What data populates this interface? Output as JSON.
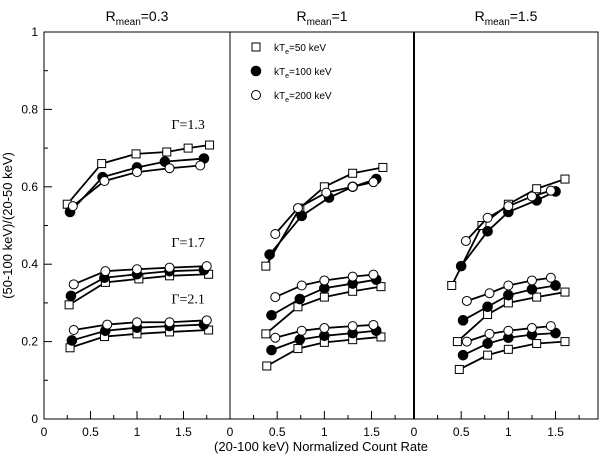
{
  "chart_data": {
    "type": "line",
    "xlabel": "(20-100 keV) Normalized Count Rate",
    "ylabel": "(50-100 keV)/(20-50 keV)",
    "ylim": [
      0,
      1
    ],
    "y_ticks": [
      "0",
      "0.2",
      "0.4",
      "0.6",
      "0.8",
      "1"
    ],
    "legend": {
      "placement": "top of middle panel",
      "entries": [
        {
          "key": "kT50",
          "label": "kT",
          "sub": "e",
          "rest": "=50 keV",
          "marker": "open-square"
        },
        {
          "key": "kT100",
          "label": "kT",
          "sub": "e",
          "rest": "=100 keV",
          "marker": "filled-circle"
        },
        {
          "key": "kT200",
          "label": "kT",
          "sub": "e",
          "rest": "=200 keV",
          "marker": "open-circle"
        }
      ]
    },
    "gamma_labels": [
      {
        "text": "Γ=1.3",
        "x": 1.55,
        "y": 0.75
      },
      {
        "text": "Γ=1.7",
        "x": 1.55,
        "y": 0.445
      },
      {
        "text": "Γ=2.1",
        "x": 1.55,
        "y": 0.298
      }
    ],
    "panels": [
      {
        "title_main": "R",
        "title_sub": "mean",
        "title_rest": "=0.3",
        "xlim": [
          0,
          2
        ],
        "x_ticks": [
          "0",
          "0.5",
          "1",
          "1.5"
        ],
        "series": [
          {
            "name": "Γ=1.3 kTe=50 keV",
            "marker": "open-square",
            "x": [
              0.25,
              0.62,
              0.99,
              1.32,
              1.55,
              1.78
            ],
            "y": [
              0.555,
              0.66,
              0.685,
              0.69,
              0.7,
              0.708
            ]
          },
          {
            "name": "Γ=1.3 kTe=100 keV",
            "marker": "filled-circle",
            "x": [
              0.28,
              0.63,
              1.0,
              1.3,
              1.72
            ],
            "y": [
              0.535,
              0.625,
              0.65,
              0.665,
              0.673
            ]
          },
          {
            "name": "Γ=1.3 kTe=200 keV",
            "marker": "open-circle",
            "x": [
              0.31,
              0.65,
              1.0,
              1.35,
              1.68
            ],
            "y": [
              0.55,
              0.615,
              0.638,
              0.648,
              0.655
            ]
          },
          {
            "name": "Γ=1.7 kTe=50 keV",
            "marker": "open-square",
            "x": [
              0.27,
              0.66,
              1.02,
              1.35,
              1.77
            ],
            "y": [
              0.295,
              0.353,
              0.362,
              0.37,
              0.374
            ]
          },
          {
            "name": "Γ=1.7 kTe=100 keV",
            "marker": "filled-circle",
            "x": [
              0.29,
              0.65,
              1.0,
              1.35,
              1.72
            ],
            "y": [
              0.318,
              0.365,
              0.374,
              0.382,
              0.385
            ]
          },
          {
            "name": "Γ=1.7 kTe=200 keV",
            "marker": "open-circle",
            "x": [
              0.32,
              0.66,
              1.0,
              1.35,
              1.75
            ],
            "y": [
              0.348,
              0.382,
              0.387,
              0.391,
              0.395
            ]
          },
          {
            "name": "Γ=2.1 kTe=50 keV",
            "marker": "open-square",
            "x": [
              0.28,
              0.65,
              1.0,
              1.35,
              1.77
            ],
            "y": [
              0.184,
              0.213,
              0.22,
              0.225,
              0.23
            ]
          },
          {
            "name": "Γ=2.1 kTe=100 keV",
            "marker": "filled-circle",
            "x": [
              0.3,
              0.66,
              1.0,
              1.35,
              1.72
            ],
            "y": [
              0.203,
              0.228,
              0.236,
              0.24,
              0.244
            ]
          },
          {
            "name": "Γ=2.1 kTe=200 keV",
            "marker": "open-circle",
            "x": [
              0.32,
              0.68,
              1.0,
              1.35,
              1.75
            ],
            "y": [
              0.23,
              0.244,
              0.25,
              0.25,
              0.255
            ]
          }
        ]
      },
      {
        "title_main": "R",
        "title_sub": "mean",
        "title_rest": "=1",
        "xlim": [
          0,
          1.95
        ],
        "x_ticks": [
          "0",
          "0.5",
          "1",
          "1.5"
        ],
        "series": [
          {
            "name": "Γ=1.3 kTe=50 keV",
            "marker": "open-square",
            "x": [
              0.38,
              0.74,
              1.0,
              1.3,
              1.62
            ],
            "y": [
              0.395,
              0.545,
              0.6,
              0.635,
              0.65
            ]
          },
          {
            "name": "Γ=1.3 kTe=100 keV",
            "marker": "filled-circle",
            "x": [
              0.42,
              0.76,
              1.05,
              1.3,
              1.55
            ],
            "y": [
              0.425,
              0.525,
              0.572,
              0.6,
              0.62
            ]
          },
          {
            "name": "Γ=1.3 kTe=200 keV",
            "marker": "open-circle",
            "x": [
              0.48,
              0.72,
              1.02,
              1.3,
              1.52
            ],
            "y": [
              0.478,
              0.545,
              0.585,
              0.6,
              0.612
            ]
          },
          {
            "name": "Γ=1.7 kTe=50 keV",
            "marker": "open-square",
            "x": [
              0.38,
              0.72,
              1.0,
              1.3,
              1.6
            ],
            "y": [
              0.22,
              0.29,
              0.315,
              0.33,
              0.342
            ]
          },
          {
            "name": "Γ=1.7 kTe=100 keV",
            "marker": "filled-circle",
            "x": [
              0.44,
              0.74,
              1.0,
              1.3,
              1.55
            ],
            "y": [
              0.268,
              0.31,
              0.338,
              0.35,
              0.36
            ]
          },
          {
            "name": "Γ=1.7 kTe=200 keV",
            "marker": "open-circle",
            "x": [
              0.48,
              0.76,
              1.0,
              1.3,
              1.52
            ],
            "y": [
              0.315,
              0.345,
              0.358,
              0.368,
              0.373
            ]
          },
          {
            "name": "Γ=2.1 kTe=50 keV",
            "marker": "open-square",
            "x": [
              0.39,
              0.72,
              1.0,
              1.3,
              1.6
            ],
            "y": [
              0.137,
              0.182,
              0.198,
              0.205,
              0.212
            ]
          },
          {
            "name": "Γ=2.1 kTe=100 keV",
            "marker": "filled-circle",
            "x": [
              0.44,
              0.74,
              1.0,
              1.3,
              1.55
            ],
            "y": [
              0.178,
              0.205,
              0.215,
              0.222,
              0.228
            ]
          },
          {
            "name": "Γ=2.1 kTe=200 keV",
            "marker": "open-circle",
            "x": [
              0.48,
              0.76,
              1.0,
              1.3,
              1.52
            ],
            "y": [
              0.21,
              0.228,
              0.235,
              0.24,
              0.243
            ]
          }
        ]
      },
      {
        "title_main": "R",
        "title_sub": "mean",
        "title_rest": "=1.5",
        "xlim": [
          0,
          1.95
        ],
        "x_ticks": [
          "0",
          "0.5",
          "1",
          "1.5"
        ],
        "series": [
          {
            "name": "Γ=1.3 kTe=50 keV",
            "marker": "open-square",
            "x": [
              0.4,
              0.72,
              1.0,
              1.3,
              1.6
            ],
            "y": [
              0.345,
              0.5,
              0.555,
              0.595,
              0.62
            ]
          },
          {
            "name": "Γ=1.3 kTe=100 keV",
            "marker": "filled-circle",
            "x": [
              0.5,
              0.78,
              1.0,
              1.3,
              1.5
            ],
            "y": [
              0.395,
              0.485,
              0.535,
              0.565,
              0.588
            ]
          },
          {
            "name": "Γ=1.3 kTe=200 keV",
            "marker": "open-circle",
            "x": [
              0.55,
              0.78,
              1.0,
              1.25,
              1.45
            ],
            "y": [
              0.46,
              0.52,
              0.55,
              0.575,
              0.59
            ]
          },
          {
            "name": "Γ=1.7 kTe=50 keV",
            "marker": "open-square",
            "x": [
              0.46,
              0.78,
              1.0,
              1.3,
              1.6
            ],
            "y": [
              0.2,
              0.27,
              0.3,
              0.315,
              0.328
            ]
          },
          {
            "name": "Γ=1.7 kTe=100 keV",
            "marker": "filled-circle",
            "x": [
              0.52,
              0.78,
              1.0,
              1.25,
              1.5
            ],
            "y": [
              0.255,
              0.29,
              0.32,
              0.335,
              0.345
            ]
          },
          {
            "name": "Γ=1.7 kTe=200 keV",
            "marker": "open-circle",
            "x": [
              0.56,
              0.8,
              1.0,
              1.25,
              1.45
            ],
            "y": [
              0.305,
              0.325,
              0.345,
              0.358,
              0.365
            ]
          },
          {
            "name": "Γ=2.1 kTe=50 keV",
            "marker": "open-square",
            "x": [
              0.48,
              0.78,
              1.0,
              1.3,
              1.6
            ],
            "y": [
              0.128,
              0.165,
              0.18,
              0.195,
              0.2
            ]
          },
          {
            "name": "Γ=2.1 kTe=100 keV",
            "marker": "filled-circle",
            "x": [
              0.52,
              0.78,
              1.0,
              1.25,
              1.5
            ],
            "y": [
              0.165,
              0.195,
              0.21,
              0.218,
              0.222
            ]
          },
          {
            "name": "Γ=2.1 kTe=200 keV",
            "marker": "open-circle",
            "x": [
              0.56,
              0.8,
              1.0,
              1.25,
              1.45
            ],
            "y": [
              0.2,
              0.22,
              0.228,
              0.235,
              0.24
            ]
          }
        ]
      }
    ]
  }
}
